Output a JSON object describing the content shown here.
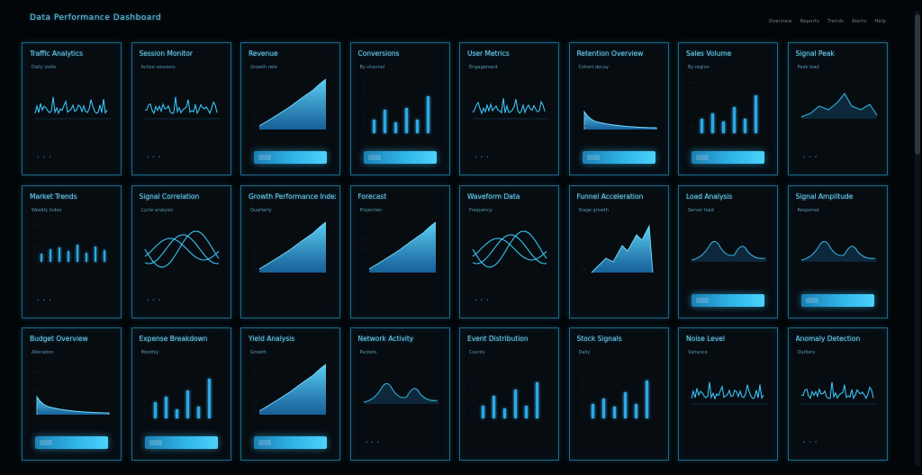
{
  "app": {
    "title": "Data Performance Dashboard"
  },
  "nav": {
    "items": [
      "Overview",
      "Reports",
      "Trends",
      "Alerts",
      "Help"
    ]
  },
  "colors": {
    "background": "#030609",
    "card_border": "#1c6d8c",
    "accent": "#2ba9e6",
    "accent_light": "#71dcff"
  },
  "cards": [
    {
      "title": "Traffic Analytics",
      "subtitle": "Daily visits",
      "chart": "line-spiky",
      "footer": "• • •",
      "button": false
    },
    {
      "title": "Session Monitor",
      "subtitle": "Active sessions",
      "chart": "line-spiky",
      "footer": "• • •",
      "button": false
    },
    {
      "title": "Revenue",
      "subtitle": "Growth rate",
      "chart": "area",
      "footer": "",
      "button": true
    },
    {
      "title": "Conversions",
      "subtitle": "By channel",
      "chart": "bar",
      "footer": "",
      "button": true
    },
    {
      "title": "User Metrics",
      "subtitle": "Engagement",
      "chart": "line-spiky",
      "footer": "• • •",
      "button": false
    },
    {
      "title": "Retention Overview",
      "subtitle": "Cohort decay",
      "chart": "area-decay",
      "footer": "",
      "button": true
    },
    {
      "title": "Sales Volume",
      "subtitle": "By region",
      "chart": "bar",
      "footer": "",
      "button": true
    },
    {
      "title": "Signal Peak",
      "subtitle": "Peak load",
      "chart": "peak",
      "footer": "• • •",
      "button": false
    },
    {
      "title": "Market Trends",
      "subtitle": "Weekly index",
      "chart": "bar-short",
      "footer": "• • •",
      "button": false
    },
    {
      "title": "Signal Correlation",
      "subtitle": "Cycle analysis",
      "chart": "sine",
      "footer": "• • •",
      "button": false
    },
    {
      "title": "Growth Performance Index",
      "subtitle": "Quarterly",
      "chart": "area-rising",
      "footer": "",
      "button": false
    },
    {
      "title": "Forecast",
      "subtitle": "Projection",
      "chart": "area-rising",
      "footer": "",
      "button": false
    },
    {
      "title": "Waveform Data",
      "subtitle": "Frequency",
      "chart": "sine",
      "footer": "• • •",
      "button": false
    },
    {
      "title": "Funnel Acceleration",
      "subtitle": "Stage growth",
      "chart": "area-jagged",
      "footer": "",
      "button": false
    },
    {
      "title": "Load Analysis",
      "subtitle": "Server load",
      "chart": "peak-smooth",
      "footer": "",
      "button": true
    },
    {
      "title": "Signal Amplitude",
      "subtitle": "Response",
      "chart": "peak-smooth",
      "footer": "",
      "button": true
    },
    {
      "title": "Budget Overview",
      "subtitle": "Allocation",
      "chart": "area-decay",
      "footer": "",
      "button": true
    },
    {
      "title": "Expense Breakdown",
      "subtitle": "Monthly",
      "chart": "bar",
      "footer": "",
      "button": true
    },
    {
      "title": "Yield Analysis",
      "subtitle": "Growth",
      "chart": "area",
      "footer": "",
      "button": true
    },
    {
      "title": "Network Activity",
      "subtitle": "Packets",
      "chart": "peak-smooth",
      "footer": "• • •",
      "button": false
    },
    {
      "title": "Event Distribution",
      "subtitle": "Counts",
      "chart": "bar",
      "footer": "",
      "button": false
    },
    {
      "title": "Stock Signals",
      "subtitle": "Daily",
      "chart": "bar",
      "footer": "",
      "button": false
    },
    {
      "title": "Noise Level",
      "subtitle": "Variance",
      "chart": "line-spiky",
      "footer": "",
      "button": false
    },
    {
      "title": "Anomaly Detection",
      "subtitle": "Outliers",
      "chart": "line-spiky",
      "footer": "• • •",
      "button": false
    }
  ]
}
